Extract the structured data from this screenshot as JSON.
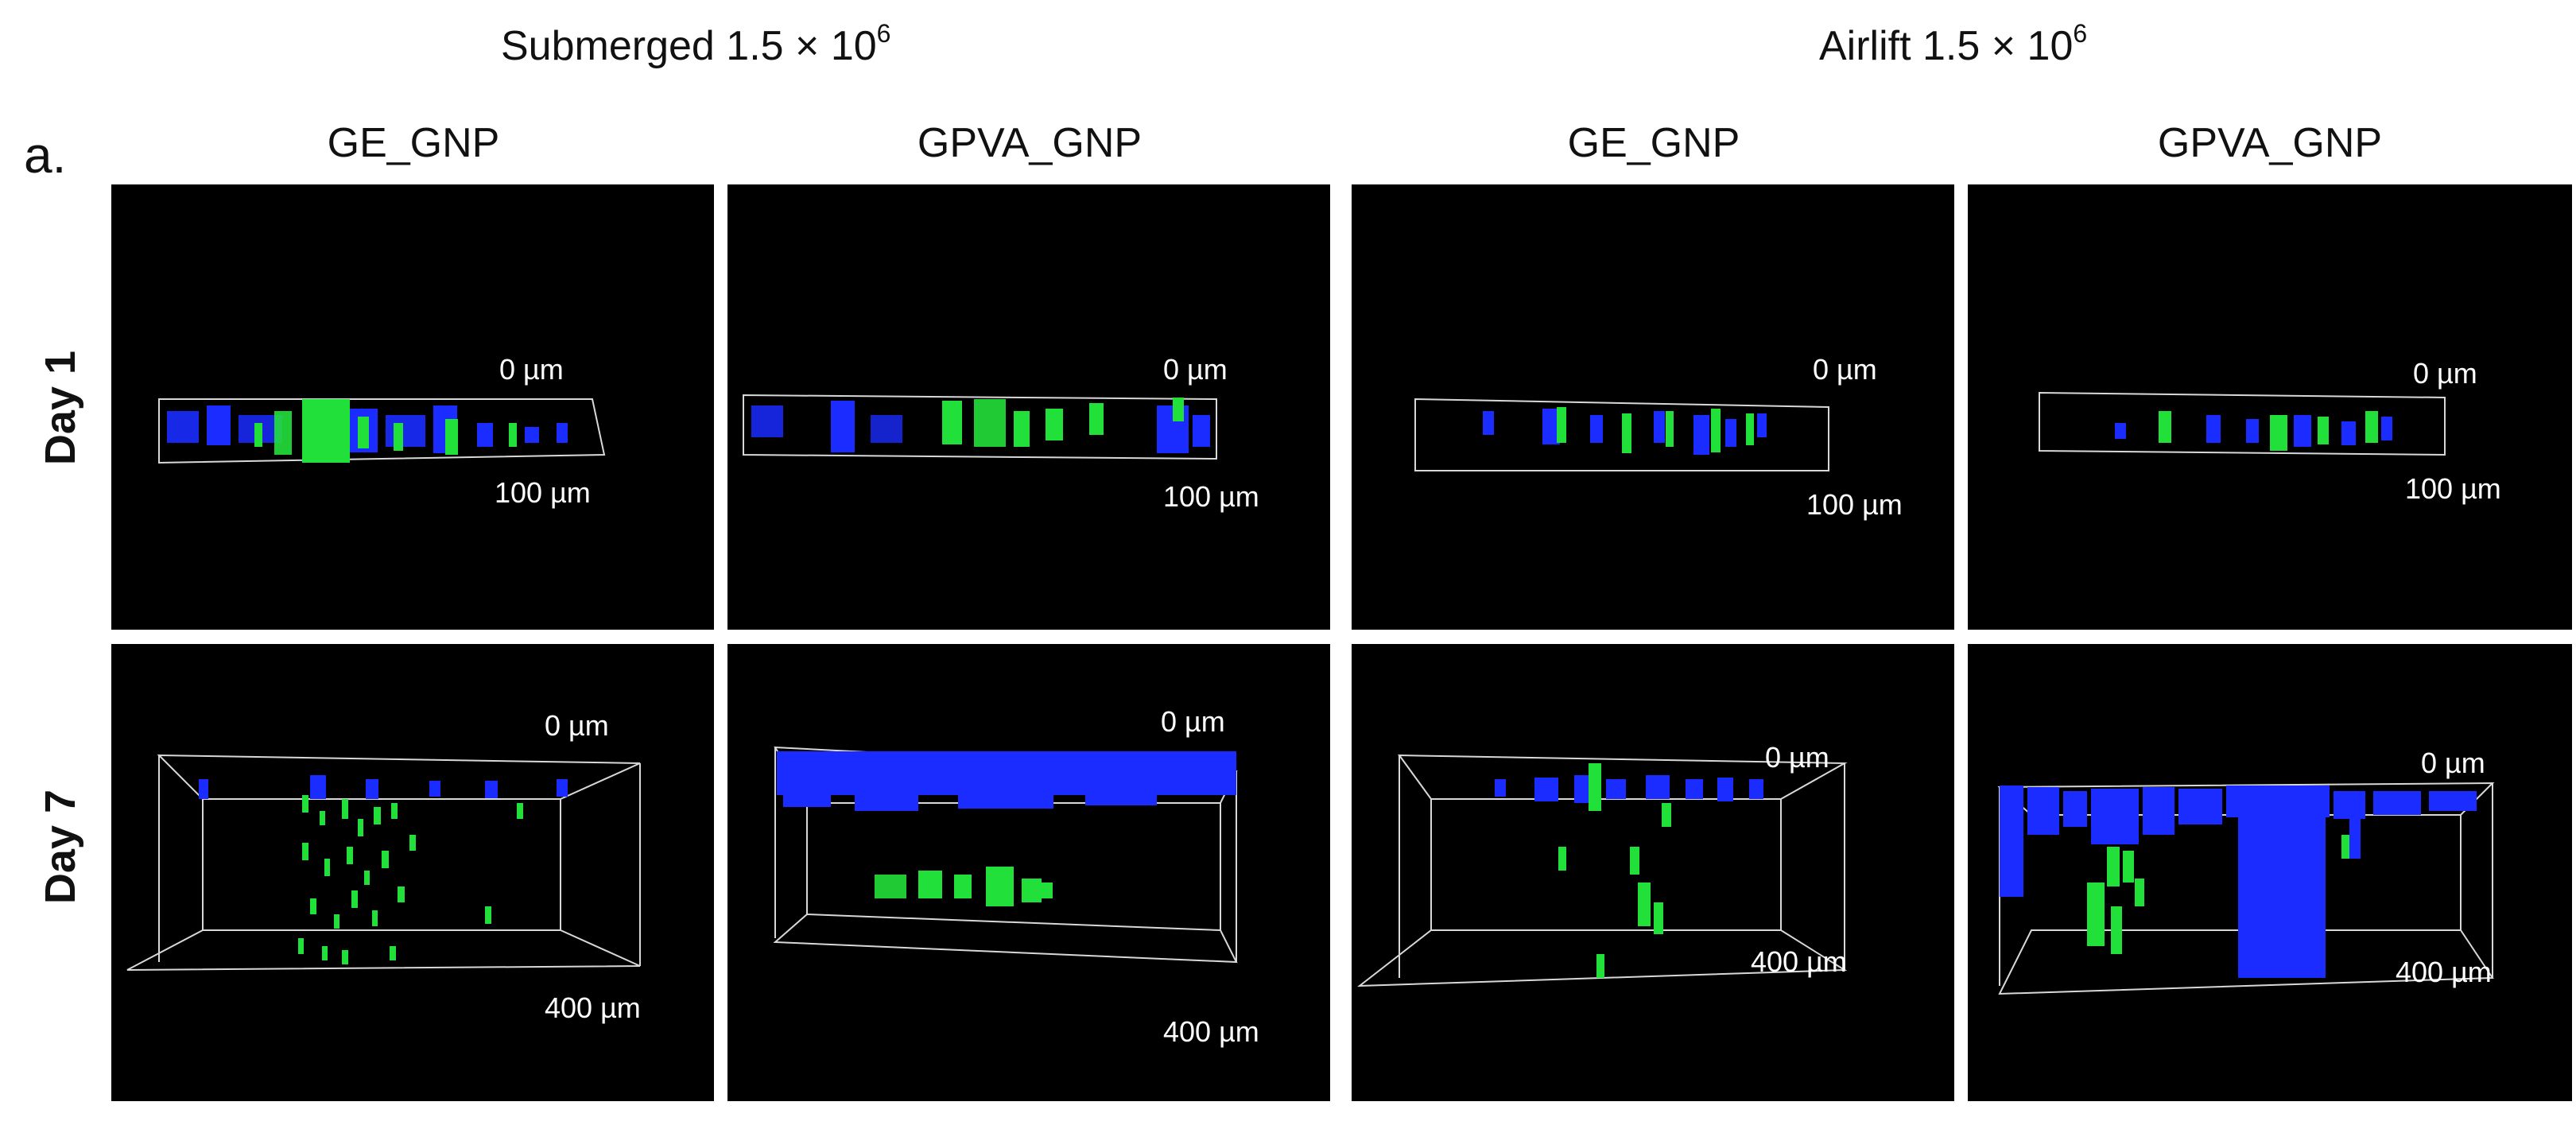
{
  "figure": {
    "groups": [
      {
        "title": "Submerged 1.5 × 10",
        "exponent": "6"
      },
      {
        "title": "Airlift 1.5 × 10",
        "exponent": "6"
      }
    ],
    "panel_letter": "a.",
    "columns": [
      "GE_GNP",
      "GPVA_GNP",
      "GE_GNP",
      "GPVA_GNP"
    ],
    "rows": [
      "Day 1",
      "Day 7"
    ],
    "scale_labels": {
      "day1": {
        "top": "0 µm",
        "bottom": "100 µm"
      },
      "day7": {
        "top": "0 µm",
        "bottom": "400 µm"
      }
    },
    "colors": {
      "nuclei": "#1a2cff",
      "particles": "#22e03a",
      "background": "#000000",
      "box": "#d8d8d8"
    }
  }
}
